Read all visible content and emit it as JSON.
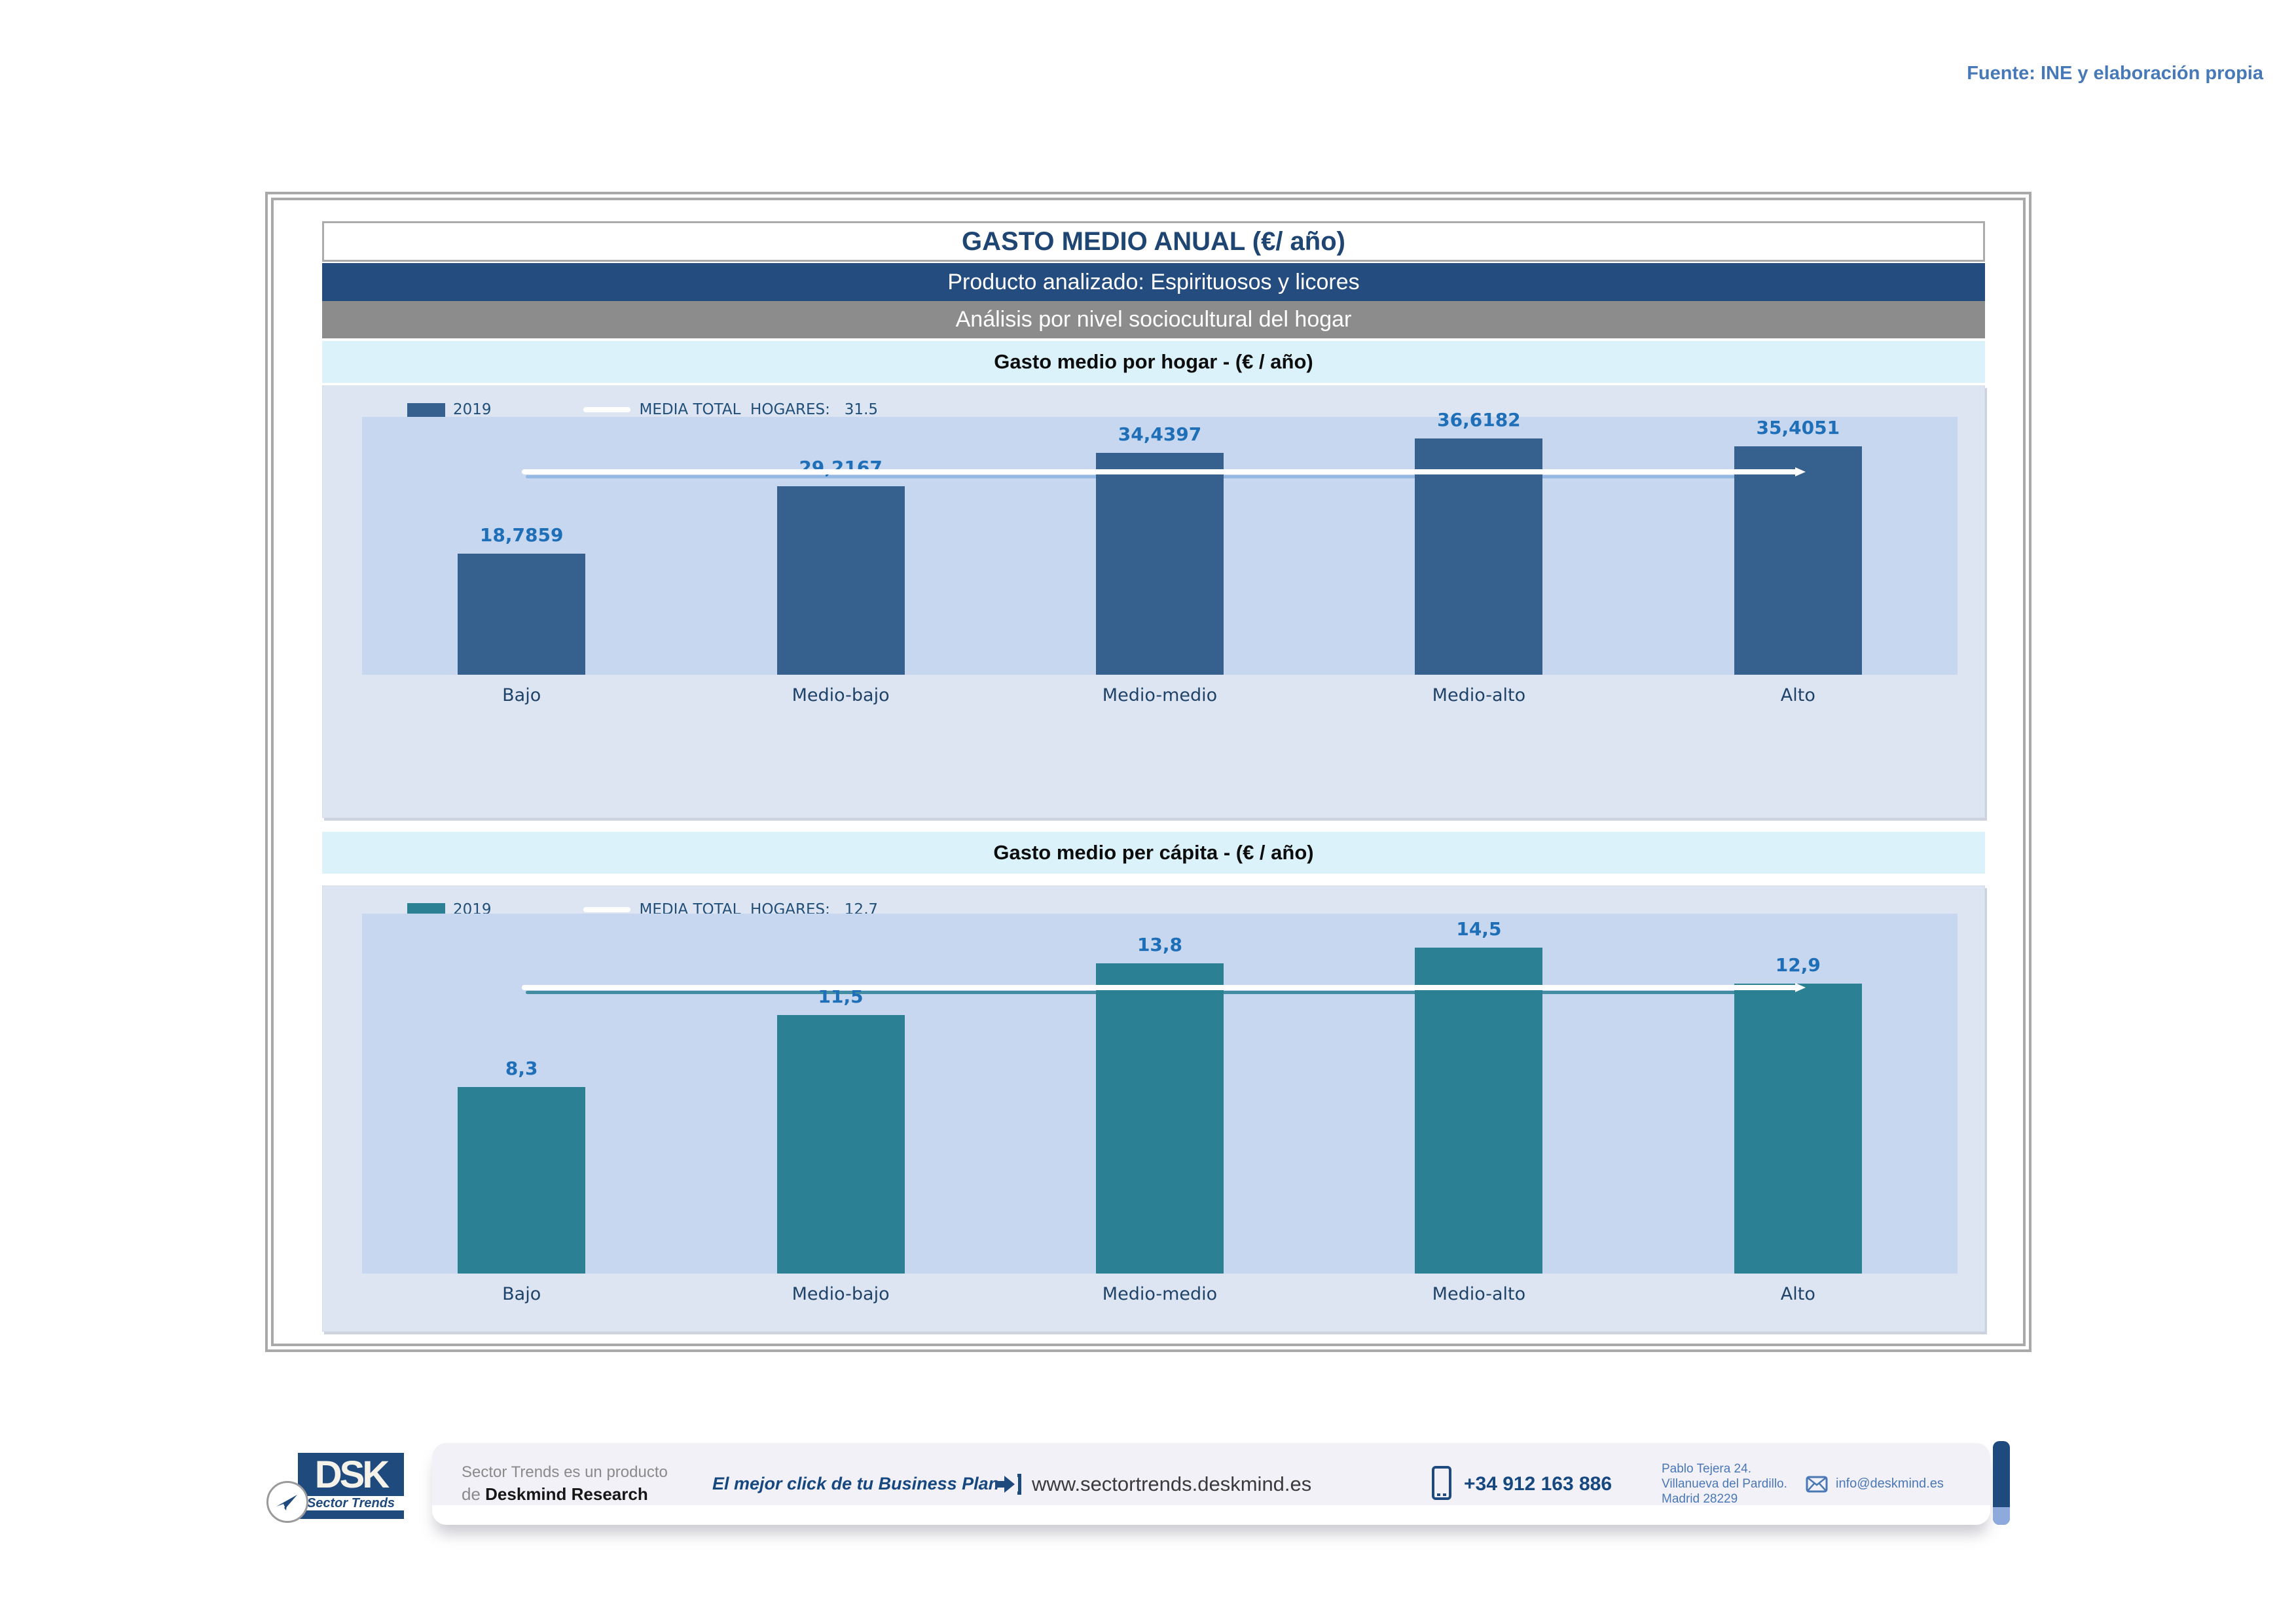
{
  "source_note": "Fuente: INE y elaboración propia",
  "header": {
    "title": "GASTO MEDIO ANUAL (€/ año)",
    "product_row": "Producto analizado: Espirituosos y licores",
    "analysis_row": "Análisis por nivel sociocultural del hogar"
  },
  "chart_data": [
    {
      "type": "bar",
      "band_title": "Gasto medio por hogar -  (€ / año)",
      "legend": {
        "series_label": "2019",
        "media_label": "MEDIA TOTAL  HOGARES:   31.5"
      },
      "categories": [
        "Bajo",
        "Medio-bajo",
        "Medio-medio",
        "Medio-alto",
        "Alto"
      ],
      "values": [
        18.7859,
        29.2167,
        34.4397,
        36.6182,
        35.4051
      ],
      "value_labels": [
        "18,7859",
        "29,2167",
        "34,4397",
        "36,6182",
        "35,4051"
      ],
      "media_total": 31.5,
      "ylim": [
        0,
        40
      ],
      "grid": false,
      "legend_position": "top-left",
      "bar_color": "#36618E",
      "line_color": "#FFFFFF",
      "line_shadow_color": "#8DB4E2"
    },
    {
      "type": "bar",
      "band_title": "Gasto medio per cápita -  (€ / año)",
      "legend": {
        "series_label": "2019",
        "media_label": "MEDIA TOTAL  HOGARES:   12,7"
      },
      "categories": [
        "Bajo",
        "Medio-bajo",
        "Medio-medio",
        "Medio-alto",
        "Alto"
      ],
      "values": [
        8.3,
        11.5,
        13.8,
        14.5,
        12.9
      ],
      "value_labels": [
        "8,3",
        "11,5",
        "13,8",
        "14,5",
        "12,9"
      ],
      "media_total": 12.7,
      "ylim": [
        0,
        16
      ],
      "grid": false,
      "legend_position": "top-left",
      "bar_color": "#2C8094",
      "line_color": "#FFFFFF",
      "line_shadow_color": "#2C8094"
    }
  ],
  "footer": {
    "logo": {
      "acronym": "DSK",
      "subtitle": "Sector Trends"
    },
    "product_line1": "Sector Trends es un producto",
    "product_line2_prefix": "de ",
    "product_line2_bold": "Deskmind Research",
    "tagline": "El mejor click de tu Business Plan",
    "website": "www.sectortrends.deskmind.es",
    "phone": "+34 912 163 886",
    "address": [
      "Pablo Tejera 24.",
      "Villanueva del Pardillo.",
      "Madrid 28229"
    ],
    "email": "info@deskmind.es"
  }
}
